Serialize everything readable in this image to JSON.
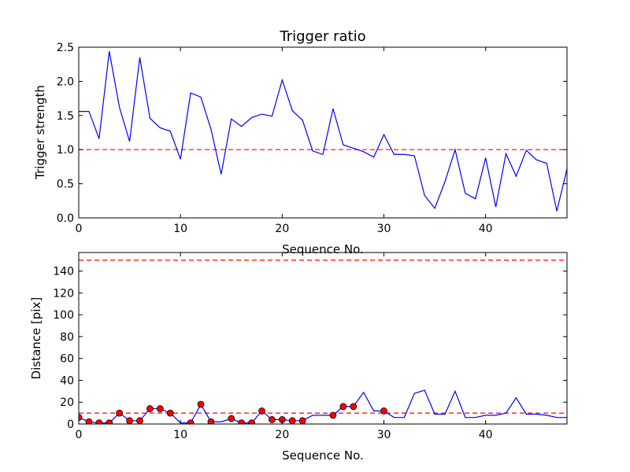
{
  "chart_data": [
    {
      "type": "line",
      "title": "Trigger ratio",
      "xlabel": "Sequence No.",
      "ylabel": "Trigger strength",
      "xlim": [
        0,
        48
      ],
      "ylim": [
        0,
        2.5
      ],
      "x_ticks": [
        "0",
        "10",
        "20",
        "30",
        "40"
      ],
      "y_ticks": [
        "0.0",
        "0.5",
        "1.0",
        "1.5",
        "2.0",
        "2.5"
      ],
      "grid": false,
      "threshold": 1.0,
      "threshold_color": "#ff0000",
      "series": [
        {
          "color": "#0000ff",
          "x": [
            0,
            1,
            2,
            3,
            4,
            5,
            6,
            7,
            8,
            9,
            10,
            11,
            12,
            13,
            14,
            15,
            16,
            17,
            18,
            19,
            20,
            21,
            22,
            23,
            24,
            25,
            26,
            27,
            28,
            29,
            30,
            31,
            32,
            33,
            34,
            35,
            36,
            37,
            38,
            39,
            40,
            41,
            42,
            43,
            44,
            45,
            46,
            47,
            48
          ],
          "y": [
            1.56,
            1.56,
            1.16,
            2.44,
            1.62,
            1.12,
            2.35,
            1.46,
            1.32,
            1.27,
            0.86,
            1.83,
            1.77,
            1.3,
            0.64,
            1.45,
            1.34,
            1.47,
            1.52,
            1.49,
            2.02,
            1.57,
            1.43,
            0.98,
            0.93,
            1.6,
            1.07,
            1.02,
            0.97,
            0.89,
            1.22,
            0.93,
            0.93,
            0.91,
            0.33,
            0.14,
            0.53,
            1.0,
            0.36,
            0.28,
            0.88,
            0.16,
            0.94,
            0.61,
            0.99,
            0.85,
            0.8,
            0.1,
            0.72
          ]
        }
      ]
    },
    {
      "type": "line",
      "title": "",
      "xlabel": "Sequence No.",
      "ylabel": "Distance [pix]",
      "xlim": [
        0,
        48
      ],
      "ylim": [
        0,
        157
      ],
      "x_ticks": [
        "0",
        "10",
        "20",
        "30",
        "40"
      ],
      "y_ticks": [
        "0",
        "20",
        "40",
        "60",
        "80",
        "100",
        "120",
        "140"
      ],
      "grid": false,
      "thresholds": [
        10,
        150
      ],
      "threshold_color": "#ff0000",
      "series": [
        {
          "color": "#0000ff",
          "x": [
            0,
            1,
            2,
            3,
            4,
            5,
            6,
            7,
            8,
            9,
            10,
            11,
            12,
            13,
            14,
            15,
            16,
            17,
            18,
            19,
            20,
            21,
            22,
            23,
            24,
            25,
            26,
            27,
            28,
            29,
            30,
            31,
            32,
            33,
            34,
            35,
            36,
            37,
            38,
            39,
            40,
            41,
            42,
            43,
            44,
            45,
            46,
            47,
            48
          ],
          "y": [
            6,
            2,
            1,
            1,
            10,
            3,
            3,
            14,
            14,
            10,
            1,
            1,
            18,
            2,
            2,
            5,
            1,
            1,
            12,
            4,
            4,
            3,
            3,
            8,
            8,
            8,
            16,
            16,
            29,
            12,
            12,
            6,
            6,
            28,
            31,
            9,
            9,
            30,
            6,
            6,
            8,
            8,
            10,
            24,
            9,
            9,
            8,
            6,
            6
          ]
        },
        {
          "marker_color": "#ff0000",
          "x": [
            0,
            1,
            2,
            3,
            4,
            5,
            6,
            7,
            8,
            9,
            11,
            12,
            13,
            15,
            16,
            17,
            18,
            19,
            20,
            21,
            22,
            25,
            26,
            27,
            30
          ],
          "y": [
            6,
            2,
            1,
            1,
            10,
            3,
            3,
            14,
            14,
            10,
            1,
            18,
            2,
            5,
            1,
            1,
            12,
            4,
            4,
            3,
            3,
            8,
            16,
            16,
            12
          ]
        }
      ]
    }
  ]
}
